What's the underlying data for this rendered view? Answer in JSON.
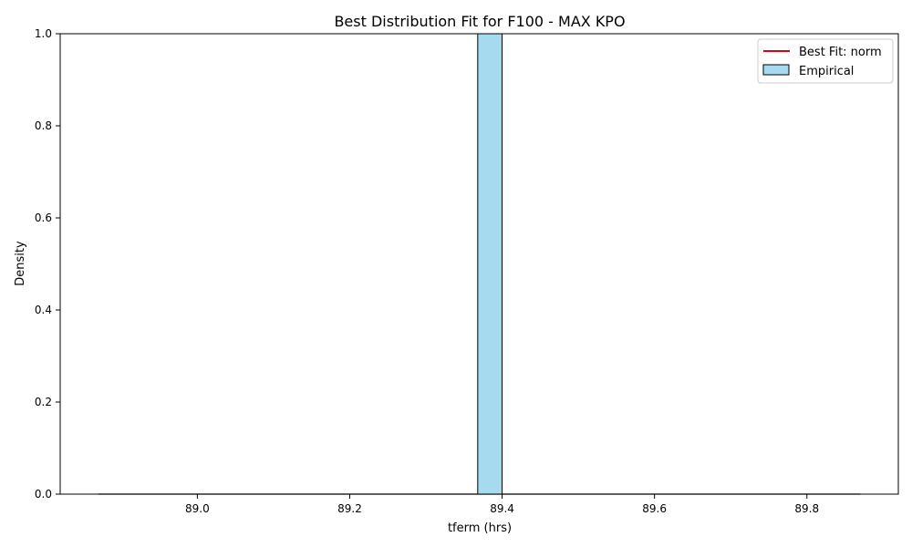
{
  "chart_data": {
    "type": "bar",
    "title": "Best Distribution Fit for F100 - MAX KPO",
    "xlabel": "tferm (hrs)",
    "ylabel": "Density",
    "xlim": [
      88.82,
      89.92
    ],
    "ylim": [
      0,
      1.0
    ],
    "x_ticks": [
      89.0,
      89.2,
      89.4,
      89.6,
      89.8
    ],
    "x_tick_labels": [
      "89.0",
      "89.2",
      "89.4",
      "89.6",
      "89.8"
    ],
    "y_ticks": [
      0.0,
      0.2,
      0.4,
      0.6,
      0.8,
      1.0
    ],
    "y_tick_labels": [
      "0.0",
      "0.2",
      "0.4",
      "0.6",
      "0.8",
      "1.0"
    ],
    "grid": false,
    "legend_position": "top-right",
    "histogram": {
      "name": "Empirical",
      "bins": [
        {
          "x0": 89.368,
          "x1": 89.4,
          "density": 1.0
        }
      ],
      "color": "#a6dbef",
      "edgecolor": "#000000"
    },
    "fit_line": {
      "name": "Best Fit: norm",
      "color": "#e0000f",
      "x": [
        88.87,
        89.37,
        89.38,
        89.39,
        89.4,
        89.87
      ],
      "y": [
        0,
        0,
        0,
        0,
        0,
        0
      ]
    },
    "legend": [
      {
        "label": "Best Fit: norm",
        "kind": "line",
        "color": "#e0000f"
      },
      {
        "label": "Empirical",
        "kind": "patch",
        "color": "#a6dbef"
      }
    ]
  }
}
